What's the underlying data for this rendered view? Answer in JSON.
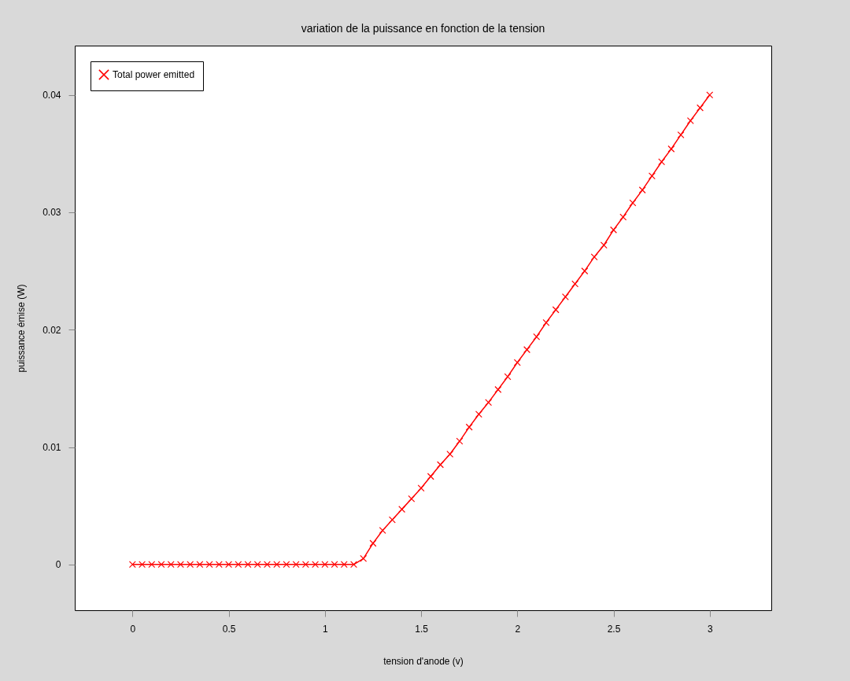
{
  "chart_data": {
    "type": "line",
    "title": "variation de la puissance en fonction de la tension",
    "xlabel": "tension d'anode (v)",
    "ylabel": "puissance émise (W)",
    "x": [
      0,
      0.05,
      0.1,
      0.15,
      0.2,
      0.25,
      0.3,
      0.35,
      0.4,
      0.45,
      0.5,
      0.55,
      0.6,
      0.65,
      0.7,
      0.75,
      0.8,
      0.85,
      0.9,
      0.95,
      1.0,
      1.05,
      1.1,
      1.15,
      1.2,
      1.25,
      1.3,
      1.35,
      1.4,
      1.45,
      1.5,
      1.55,
      1.6,
      1.65,
      1.7,
      1.75,
      1.8,
      1.85,
      1.9,
      1.95,
      2.0,
      2.05,
      2.1,
      2.15,
      2.2,
      2.25,
      2.3,
      2.35,
      2.4,
      2.45,
      2.5,
      2.55,
      2.6,
      2.65,
      2.7,
      2.75,
      2.8,
      2.85,
      2.9,
      2.95,
      3.0
    ],
    "series": [
      {
        "name": "Total power emitted",
        "color": "#ff0000",
        "values": [
          0,
          0,
          0,
          0,
          0,
          0,
          0,
          0,
          0,
          0,
          0,
          0,
          0,
          0,
          0,
          0,
          0,
          0,
          0,
          0,
          0,
          0,
          0,
          0,
          0.0005,
          0.0018,
          0.0029,
          0.0038,
          0.0047,
          0.0056,
          0.0065,
          0.0075,
          0.0085,
          0.0094,
          0.0105,
          0.0117,
          0.0128,
          0.0138,
          0.0149,
          0.016,
          0.0172,
          0.0183,
          0.0194,
          0.0206,
          0.0217,
          0.0228,
          0.0239,
          0.025,
          0.0262,
          0.0272,
          0.0285,
          0.0296,
          0.0308,
          0.0319,
          0.0331,
          0.0343,
          0.0354,
          0.0366,
          0.0378,
          0.0389,
          0.04
        ]
      }
    ],
    "xlim": [
      -0.3,
      3.32
    ],
    "xticks": [
      0,
      0.5,
      1,
      1.5,
      2,
      2.5,
      3
    ],
    "ylim": [
      -0.0039,
      0.0442
    ],
    "yticks": [
      0,
      0.01,
      0.02,
      0.03,
      0.04
    ],
    "grid": false,
    "legend": "top left",
    "marker": "cross",
    "line_style": "solid"
  }
}
